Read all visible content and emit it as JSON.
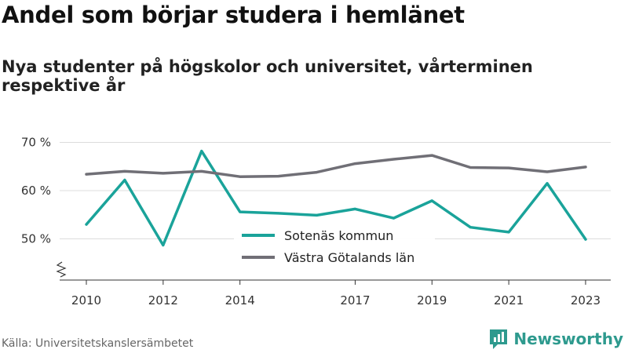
{
  "header": {
    "title": "Andel som börjar studera i hemlänet",
    "subtitle": "Nya studenter på högskolor och universitet, vårterminen respektive år"
  },
  "footer": {
    "source": "Källa: Universitetskanslersämbetet",
    "brand": "Newsworthy",
    "brand_icon": "bar-chart-logo-icon",
    "brand_color": "#2e9a8e"
  },
  "chart_data": {
    "type": "line",
    "x": [
      2010,
      2011,
      2012,
      2013,
      2014,
      2015,
      2016,
      2017,
      2018,
      2019,
      2020,
      2021,
      2022,
      2023
    ],
    "x_ticks": [
      2010,
      2012,
      2014,
      2017,
      2019,
      2021,
      2023
    ],
    "y_ticks": [
      50,
      60,
      70
    ],
    "y_tick_labels": [
      "50 %",
      "60 %",
      "70 %"
    ],
    "ylim": [
      40,
      72
    ],
    "y_axis_break": true,
    "grid": "horizontal",
    "legend_position": "center",
    "series": [
      {
        "name": "Sotenäs kommun",
        "color": "#1aa39a",
        "values": [
          53.0,
          62.2,
          48.7,
          68.2,
          55.6,
          55.3,
          54.9,
          56.2,
          54.3,
          57.9,
          52.4,
          51.4,
          61.5,
          49.9
        ]
      },
      {
        "name": "Västra Götalands län",
        "color": "#706f76",
        "values": [
          63.4,
          64.0,
          63.6,
          64.0,
          62.9,
          63.0,
          63.8,
          65.6,
          66.5,
          67.3,
          64.8,
          64.7,
          63.9,
          64.9
        ]
      }
    ]
  }
}
